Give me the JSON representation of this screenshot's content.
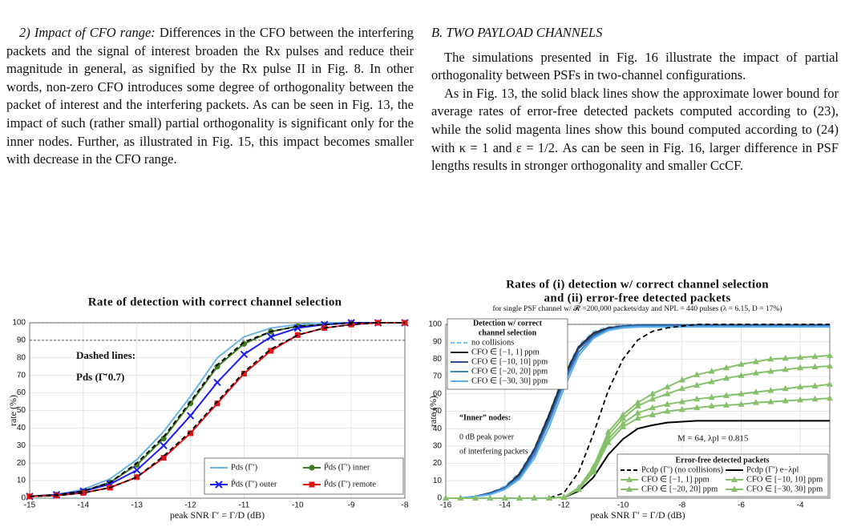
{
  "left_column": {
    "heading": "2) Impact of CFO range:",
    "paragraph": "Differences in the CFO between the interfering packets and the signal of interest broaden the Rx pulses and reduce their magnitude in general, as signified by the Rx pulse II in Fig. 8. In other words, non-zero CFO introduces some degree of orthogonality between the packet of interest and the interfering packets. As can be seen in Fig. 13, the impact of such (rather small) partial orthogonality is significant only for the inner nodes. Further, as illustrated in Fig. 15, this impact becomes smaller with decrease in the CFO range."
  },
  "right_column": {
    "heading": "B. TWO PAYLOAD CHANNELS",
    "paragraphs": [
      "The simulations presented in Fig. 16 illustrate the impact of partial orthogonality between PSFs in two-channel configurations.",
      "As in Fig. 13, the solid black lines show the approximate lower bound for average rates of error-free detected packets computed according to (23), while the solid magenta lines show this bound computed according to (24) with κ = 1 and ε = 1/2. As can be seen in Fig. 16, larger difference in PSF lengths results in stronger orthogonality and smaller CcCF."
    ]
  },
  "chart_data": [
    {
      "type": "line",
      "title": [
        "Rate of detection with correct channel selection"
      ],
      "x_label": "peak SNR  Γ′ = Γ/D (dB)",
      "y_label": "rate (%)",
      "annotations": [
        "Dashed lines:",
        "Pds (Γ̄′0.7)"
      ],
      "x": [
        -15,
        -14.5,
        -14,
        -13.5,
        -13,
        -12.5,
        -12,
        -11.5,
        -11,
        -10.5,
        -10,
        -9.5,
        -9,
        -8.5,
        -8
      ],
      "xlim": [
        -15,
        -8
      ],
      "xticks": [
        -15,
        -14,
        -13,
        -12,
        -11,
        -10,
        -9,
        -8
      ],
      "ylim": [
        0,
        100
      ],
      "yticks": [
        0,
        10,
        20,
        30,
        40,
        50,
        60,
        70,
        80,
        90,
        100
      ],
      "hlines": [
        100,
        90
      ],
      "grid": true,
      "series": [
        {
          "name": "Pds (Γ′)",
          "color": "#6cb4e6",
          "marker": "none",
          "values": [
            1,
            2,
            5,
            11,
            22,
            38,
            58,
            80,
            92,
            97,
            99,
            100,
            100,
            100,
            100
          ]
        },
        {
          "name": "P̃ds (Γ′) inner",
          "color": "#3d7a22",
          "marker": "circle",
          "values": [
            1,
            2,
            4,
            9,
            19,
            34,
            54,
            75,
            88,
            95,
            98,
            99,
            100,
            100,
            100
          ]
        },
        {
          "name": "P̃ds (Γ′) outer",
          "color": "#1c1cf0",
          "marker": "x",
          "values": [
            1,
            2,
            4,
            8,
            16,
            30,
            47,
            66,
            82,
            92,
            97,
            99,
            100,
            100,
            100
          ]
        },
        {
          "name": "P̃ds (Γ′) remote",
          "color": "#e01414",
          "marker": "square",
          "values": [
            1,
            1.5,
            3,
            6,
            12,
            23,
            37,
            54,
            71,
            84,
            93,
            97,
            99,
            100,
            100
          ]
        },
        {
          "color": "#000000",
          "dash": true,
          "marker": "none",
          "values": [
            1,
            2,
            4,
            9,
            20,
            35,
            55,
            76,
            89,
            95,
            98,
            99,
            100,
            100,
            100
          ]
        },
        {
          "color": "#000000",
          "dash": true,
          "marker": "none",
          "values": [
            1,
            1.5,
            3,
            6,
            12,
            24,
            38,
            55,
            72,
            85,
            93,
            97,
            99,
            100,
            100
          ]
        }
      ]
    },
    {
      "type": "line",
      "title": [
        "Rates of (i) detection w/ correct channel selection",
        "and (ii) error-free detected packets"
      ],
      "subtitle": "for single PSF channel w/ 𝓡 =200,000 packets/day and NPL = 440 pulses  (λ = 6.15, D = 17%)",
      "x_label": "peak SNR  Γ′ = Γ/D (dB)",
      "y_label": "rate (%)",
      "legend_titles": [
        [
          "Detection w/ correct",
          "channel selection"
        ],
        [
          "Error-free detected packets"
        ]
      ],
      "annotations": [
        "“Inner” nodes:",
        "0 dB peak power",
        "of interfering packets",
        "M = 64,  λpl = 0.815"
      ],
      "x": [
        -16,
        -15.5,
        -15,
        -14.5,
        -14,
        -13.5,
        -13,
        -12.5,
        -12,
        -11.5,
        -11,
        -10.5,
        -10,
        -9.5,
        -9,
        -8.5,
        -8,
        -7.5,
        -7,
        -6.5,
        -6,
        -5.5,
        -5,
        -4.5,
        -4,
        -3.5,
        -3
      ],
      "xlim": [
        -16,
        -3
      ],
      "xticks": [
        -16,
        -14,
        -12,
        -10,
        -8,
        -6,
        -4
      ],
      "ylim": [
        0,
        100
      ],
      "yticks": [
        0,
        10,
        20,
        30,
        40,
        50,
        60,
        70,
        80,
        90,
        100
      ],
      "hlines": [
        100
      ],
      "grid": true,
      "series": [
        {
          "name": "no collisions",
          "color": "#7cc0f0",
          "dash": true,
          "marker": "none",
          "values": [
            0,
            0,
            1,
            3,
            7,
            15,
            29,
            49,
            71,
            88,
            96,
            98.5,
            99.5,
            100,
            100,
            100,
            100,
            100,
            100,
            100,
            100,
            100,
            100,
            100,
            100,
            100,
            100
          ]
        },
        {
          "name": "CFO ∈ [−1, 1] ppm",
          "color": "#222222",
          "marker": "none",
          "values": [
            0,
            0,
            1,
            3,
            6,
            14,
            28,
            48,
            70,
            87,
            95,
            98,
            99,
            99.5,
            99.5,
            99.5,
            99.5,
            99.5,
            99.5,
            99.5,
            99.5,
            99.5,
            99.5,
            99.5,
            99.5,
            99.5,
            99.5
          ]
        },
        {
          "name": "CFO ∈ [−10, 10] ppm",
          "color": "#2c4f8c",
          "marker": "none",
          "values": [
            0,
            0,
            1,
            3,
            6,
            13,
            27,
            46,
            68,
            86,
            94,
            97.5,
            99,
            99.5,
            99.5,
            99.5,
            99.5,
            99.5,
            99.5,
            99.5,
            99.5,
            99.5,
            99.5,
            99.5,
            99.5,
            99.5,
            99.5
          ]
        },
        {
          "name": "CFO ∈ [−20, 20] ppm",
          "color": "#3a82c6",
          "marker": "none",
          "values": [
            0,
            0,
            1,
            2.5,
            5.5,
            12,
            25,
            44,
            66,
            84,
            93,
            97,
            98.5,
            99,
            99,
            99,
            99,
            99,
            99,
            99,
            99,
            99,
            99,
            99,
            99,
            99,
            99
          ]
        },
        {
          "name": "CFO ∈ [−30, 30] ppm",
          "color": "#5db0ea",
          "marker": "none",
          "values": [
            0,
            0,
            1,
            2,
            5,
            11,
            23,
            41,
            63,
            82,
            92,
            96.5,
            98,
            98.5,
            98.5,
            98.5,
            98.5,
            98.5,
            98.5,
            98.5,
            98.5,
            98.5,
            98.5,
            98.5,
            98.5,
            98.5,
            98.5
          ]
        },
        {
          "name": "Pcdp (Γ′) (no collisions)",
          "color": "#000000",
          "dash": true,
          "marker": "none",
          "values": [
            0,
            0,
            0,
            0,
            0,
            0,
            0,
            0,
            3,
            15,
            37,
            62,
            80,
            91,
            96,
            98,
            99,
            100,
            100,
            100,
            100,
            100,
            100,
            100,
            100,
            100,
            100
          ]
        },
        {
          "name": "Pcdp (Γ′) e−λpl",
          "color": "#000000",
          "marker": "none",
          "values": [
            0,
            0,
            0,
            0,
            0,
            0,
            0,
            0,
            0.5,
            4,
            12,
            25,
            34,
            40,
            42,
            43.5,
            44,
            44.5,
            44.5,
            44.5,
            44.5,
            44.5,
            44.5,
            44.5,
            44.5,
            44.5,
            44.5
          ]
        },
        {
          "name": "CFO ∈ [−1, 1] ppm",
          "color": "#86c06a",
          "marker": "triangle",
          "values": [
            0,
            0,
            0,
            0,
            0,
            0,
            0,
            0,
            0.5,
            5,
            15,
            32,
            41,
            46,
            48,
            50,
            51,
            52,
            53,
            53.5,
            54,
            55,
            55.5,
            56,
            56.5,
            57,
            57.5
          ]
        },
        {
          "name": "CFO ∈ [−10, 10] ppm",
          "color": "#86c06a",
          "marker": "triangle",
          "values": [
            0,
            0,
            0,
            0,
            0,
            0,
            0,
            0,
            0.5,
            5,
            16,
            34,
            43,
            49,
            52,
            54,
            55.5,
            57,
            58,
            59,
            60,
            61,
            62,
            63,
            64,
            64.5,
            65.5
          ]
        },
        {
          "name": "CFO ∈ [−20, 20] ppm",
          "color": "#86c06a",
          "marker": "triangle",
          "values": [
            0,
            0,
            0,
            0,
            0,
            0,
            0,
            0,
            0.5,
            6,
            17,
            36,
            46,
            53,
            57,
            60,
            63,
            65,
            67,
            69,
            70.5,
            72,
            73,
            74,
            75,
            75.5,
            76
          ]
        },
        {
          "name": "CFO ∈ [−30, 30] ppm",
          "color": "#86c06a",
          "marker": "triangle",
          "values": [
            0,
            0,
            0,
            0,
            0,
            0,
            0,
            0,
            0.5,
            6,
            18,
            38,
            48,
            55,
            60,
            64,
            68,
            71,
            73,
            75,
            77,
            78.5,
            80,
            80.5,
            81,
            81.5,
            82
          ]
        }
      ]
    }
  ]
}
